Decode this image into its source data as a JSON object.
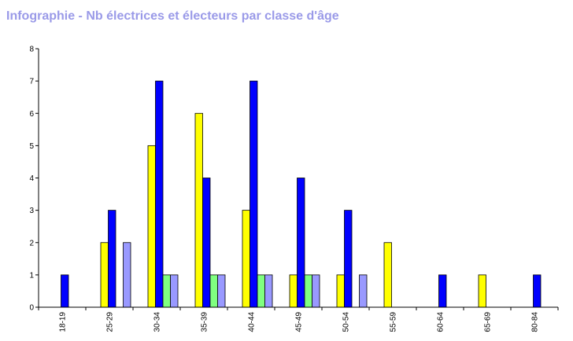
{
  "chart_data": {
    "type": "bar",
    "title": "Infographie - Nb électrices et électeurs par classe d'âge",
    "xlabel": "",
    "ylabel": "",
    "ylim": [
      0,
      8
    ],
    "yticks": [
      0,
      1,
      2,
      3,
      4,
      5,
      6,
      7,
      8
    ],
    "grid": false,
    "legend": "none",
    "categories": [
      "18-19",
      "25-29",
      "30-34",
      "35-39",
      "40-44",
      "45-49",
      "50-54",
      "55-59",
      "60-64",
      "65-69",
      "80-84"
    ],
    "series": [
      {
        "color": "#ffff00",
        "values": [
          0,
          2,
          5,
          6,
          3,
          1,
          1,
          2,
          0,
          1,
          0
        ]
      },
      {
        "color": "#0000ff",
        "values": [
          1,
          3,
          7,
          4,
          7,
          4,
          3,
          0,
          1,
          0,
          1
        ]
      },
      {
        "color": "#80ff80",
        "values": [
          0,
          0,
          1,
          1,
          1,
          1,
          0,
          0,
          0,
          0,
          0
        ]
      },
      {
        "color": "#9999ff",
        "values": [
          0,
          2,
          1,
          1,
          1,
          1,
          1,
          0,
          0,
          0,
          0
        ]
      }
    ]
  }
}
